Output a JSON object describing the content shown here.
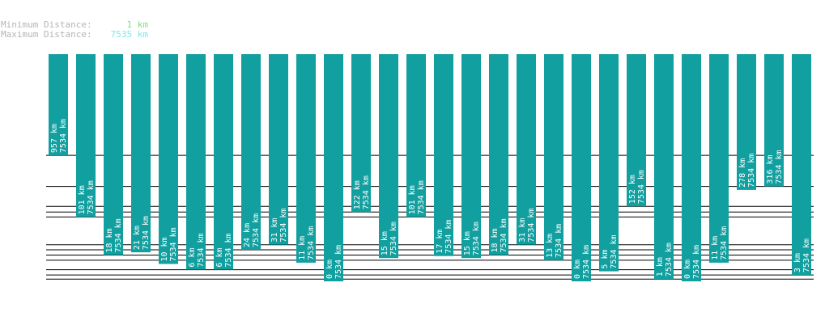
{
  "stats": {
    "min_label": "Minimum Distance:",
    "min_value": "1 km",
    "max_label": "Maximum Distance:",
    "max_value": "7535 km"
  },
  "colors": {
    "bar": "#119f9f",
    "grid": "#000000",
    "min_text": "#7ee07e",
    "max_text": "#7ee8ec",
    "label_text": "#b5b5b5"
  },
  "chart_data": {
    "type": "bar",
    "orientation": "downward",
    "values": [
      957,
      101,
      18,
      21,
      10,
      6,
      6,
      24,
      31,
      11,
      0,
      122,
      15,
      101,
      17,
      15,
      18,
      31,
      13,
      0,
      5,
      152,
      1,
      0,
      11,
      278,
      316,
      3
    ],
    "labels": [
      "957 km",
      "101 km",
      "18 km",
      "21 km",
      "10 km",
      "6 km",
      "6 km",
      "24 km",
      "31 km",
      "11 km",
      "0 km",
      "122 km",
      "15 km",
      "101 km",
      "17 km",
      "15 km",
      "18 km",
      "31 km",
      "13 km",
      "0 km",
      "5 km",
      "152 km",
      "1 km",
      "0 km",
      "11 km",
      "278 km",
      "316 km",
      "3 km"
    ],
    "sublabel": "7534 km",
    "grid": true
  }
}
